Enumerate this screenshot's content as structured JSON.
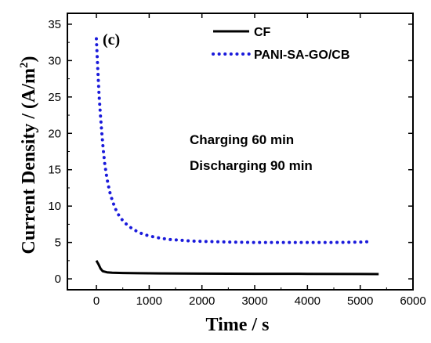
{
  "chart_data": {
    "type": "line",
    "panel_label": "(c)",
    "xlabel": "Time / s",
    "ylabel_main": "Current Density / (A/m",
    "ylabel_sup": "2",
    "ylabel_close": ")",
    "xlim": [
      -550,
      6000
    ],
    "ylim": [
      -1.5,
      36.5
    ],
    "xticks": [
      0,
      1000,
      2000,
      3000,
      4000,
      5000,
      6000
    ],
    "xtick_labels": [
      "0",
      "1000",
      "2000",
      "3000",
      "4000",
      "5000",
      "6000"
    ],
    "yticks": [
      0,
      5,
      10,
      15,
      20,
      25,
      30,
      35
    ],
    "ytick_labels": [
      "0",
      "5",
      "10",
      "15",
      "20",
      "25",
      "30",
      "35"
    ],
    "legend_position": "top-right",
    "annotations": [
      "Charging 60 min",
      "Discharging 90 min"
    ],
    "series": [
      {
        "name": "CF",
        "style": "solid",
        "color": "#000000",
        "x": [
          0,
          40,
          80,
          120,
          200,
          300,
          500,
          800,
          1200,
          2000,
          3000,
          4000,
          5000,
          5350
        ],
        "y": [
          2.5,
          2.0,
          1.4,
          1.05,
          0.9,
          0.85,
          0.8,
          0.77,
          0.75,
          0.72,
          0.7,
          0.68,
          0.66,
          0.65
        ]
      },
      {
        "name": "PANI-SA-GO/CB",
        "style": "dotted",
        "color": "#1a1adb",
        "x": [
          0,
          25,
          50,
          75,
          100,
          130,
          160,
          200,
          250,
          300,
          350,
          400,
          500,
          600,
          700,
          800,
          900,
          1000,
          1200,
          1400,
          1600,
          1800,
          2000,
          2300,
          2600,
          3000,
          3500,
          4000,
          4500,
          5000,
          5150
        ],
        "y": [
          33.0,
          29.0,
          25.3,
          22.6,
          20.2,
          17.7,
          15.7,
          13.8,
          12.0,
          10.8,
          9.8,
          9.0,
          8.0,
          7.3,
          6.8,
          6.4,
          6.1,
          5.9,
          5.6,
          5.4,
          5.3,
          5.2,
          5.15,
          5.1,
          5.05,
          5.0,
          5.0,
          5.0,
          5.0,
          5.05,
          5.1
        ]
      }
    ]
  }
}
